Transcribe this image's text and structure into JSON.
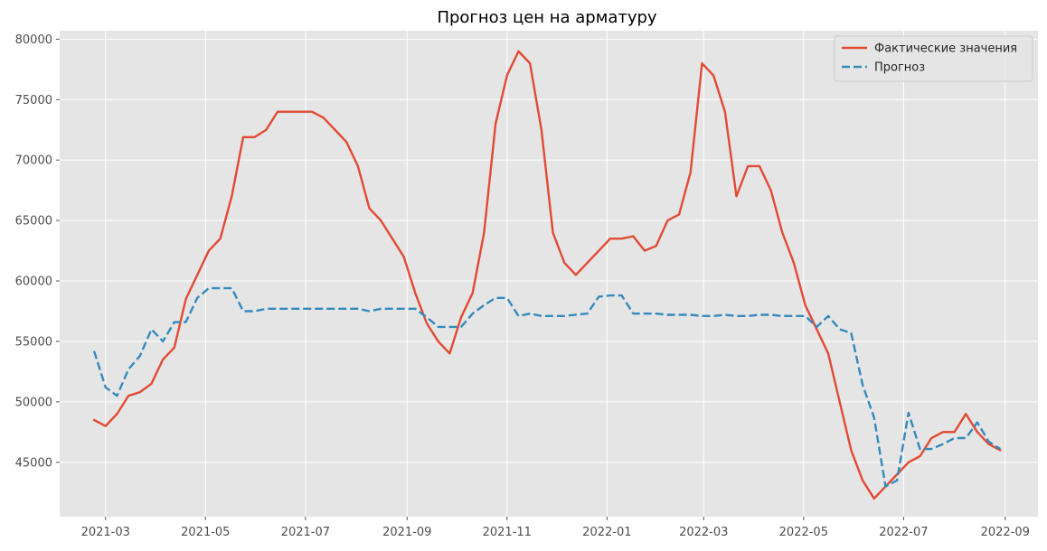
{
  "chart_data": {
    "type": "line",
    "title": "Прогноз цен на арматуру",
    "xlabel": "",
    "ylabel": "",
    "grid": true,
    "legend_position": "top-right",
    "x_range": [
      "2021-02-01",
      "2022-09-21"
    ],
    "y_range": [
      40500,
      80700
    ],
    "y_ticks": [
      45000,
      50000,
      55000,
      60000,
      65000,
      70000,
      75000,
      80000
    ],
    "x_ticks": [
      {
        "date": "2021-03-01",
        "label": "2021-03"
      },
      {
        "date": "2021-05-01",
        "label": "2021-05"
      },
      {
        "date": "2021-07-01",
        "label": "2021-07"
      },
      {
        "date": "2021-09-01",
        "label": "2021-09"
      },
      {
        "date": "2021-11-01",
        "label": "2021-11"
      },
      {
        "date": "2022-01-01",
        "label": "2022-01"
      },
      {
        "date": "2022-03-01",
        "label": "2022-03"
      },
      {
        "date": "2022-05-01",
        "label": "2022-05"
      },
      {
        "date": "2022-07-01",
        "label": "2022-07"
      },
      {
        "date": "2022-09-01",
        "label": "2022-09"
      }
    ],
    "start_date": "2021-02-22",
    "step_days": 7,
    "series": [
      {
        "name": "Фактические значения",
        "color": "#e24a33",
        "dash": "solid",
        "values": [
          48500,
          48000,
          49000,
          50500,
          50800,
          51500,
          53500,
          54500,
          58500,
          60500,
          62500,
          63500,
          67000,
          71900,
          71900,
          72500,
          74000,
          74000,
          74000,
          74000,
          73500,
          72500,
          71500,
          69500,
          66000,
          65000,
          63500,
          62000,
          59000,
          56500,
          55000,
          54000,
          57000,
          59000,
          64000,
          73000,
          77000,
          79000,
          78000,
          72500,
          64000,
          61500,
          60500,
          61500,
          62500,
          63500,
          63500,
          63700,
          62500,
          62900,
          65000,
          65500,
          69000,
          78000,
          77000,
          74000,
          67000,
          69500,
          69500,
          67500,
          64000,
          61500,
          58000,
          56000,
          54000,
          50000,
          46000,
          43500,
          42000,
          43000,
          44000,
          45000,
          45500,
          47000,
          47500,
          47500,
          49000,
          47500,
          46500,
          46000
        ]
      },
      {
        "name": "Прогноз",
        "color": "#348abd",
        "dash": "dashed",
        "values": [
          54200,
          51200,
          50500,
          52700,
          53800,
          56000,
          55000,
          56600,
          56600,
          58600,
          59400,
          59400,
          59400,
          57500,
          57500,
          57700,
          57700,
          57700,
          57700,
          57700,
          57700,
          57700,
          57700,
          57700,
          57500,
          57700,
          57700,
          57700,
          57700,
          57000,
          56200,
          56200,
          56200,
          57300,
          58000,
          58600,
          58600,
          57100,
          57300,
          57100,
          57100,
          57100,
          57200,
          57300,
          58700,
          58800,
          58800,
          57300,
          57300,
          57300,
          57200,
          57200,
          57200,
          57100,
          57100,
          57200,
          57100,
          57100,
          57200,
          57200,
          57100,
          57100,
          57100,
          56200,
          57100,
          56000,
          55700,
          51400,
          48700,
          43000,
          43500,
          49100,
          46100,
          46100,
          46500,
          47000,
          47000,
          48300,
          46700,
          46100
        ]
      }
    ]
  }
}
